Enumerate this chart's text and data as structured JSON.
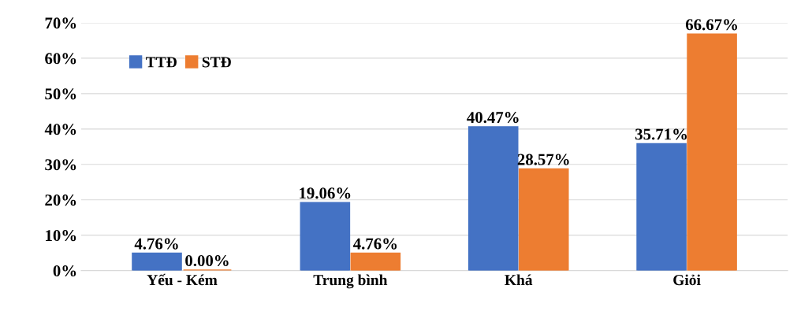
{
  "chart_data": {
    "type": "bar",
    "categories": [
      "Yếu - Kém",
      "Trung bình",
      "Khá",
      "Giỏi"
    ],
    "series": [
      {
        "name": "TTĐ",
        "color": "#4472c4",
        "values": [
          4.76,
          19.06,
          40.47,
          35.71
        ],
        "value_labels": [
          "4.76%",
          "19.06%",
          "40.47%",
          "35.71%"
        ]
      },
      {
        "name": "STĐ",
        "color": "#ed7d31",
        "values": [
          0.0,
          4.76,
          28.57,
          66.67
        ],
        "value_labels": [
          "0.00%",
          "4.76%",
          "28.57%",
          "66.67%"
        ]
      }
    ],
    "ylim": [
      0,
      70
    ],
    "yticks": [
      {
        "value": 0,
        "label": "0%"
      },
      {
        "value": 10,
        "label": "10%"
      },
      {
        "value": 20,
        "label": "20%"
      },
      {
        "value": 30,
        "label": "30%"
      },
      {
        "value": 40,
        "label": "40%"
      },
      {
        "value": 50,
        "label": "50%"
      },
      {
        "value": 60,
        "label": "60%"
      },
      {
        "value": 70,
        "label": "70%"
      }
    ],
    "grid": "y",
    "legend": "top left"
  }
}
